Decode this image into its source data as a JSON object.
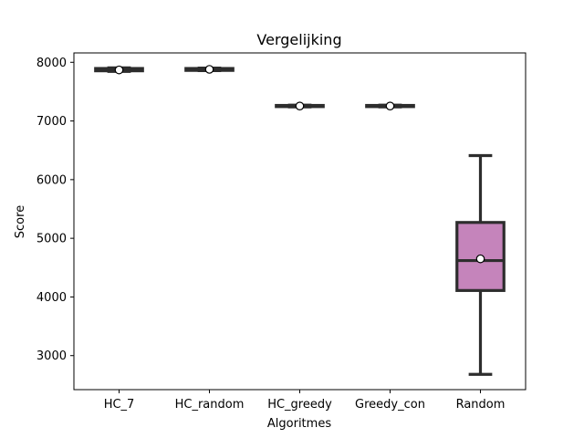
{
  "chart_data": {
    "type": "box",
    "title": "Vergelijking",
    "xlabel": "Algoritmes",
    "ylabel": "Score",
    "ylim": [
      2420,
      8160
    ],
    "yticks": [
      3000,
      4000,
      5000,
      6000,
      7000,
      8000
    ],
    "categories": [
      "HC_7",
      "HC_random",
      "HC_greedy",
      "Greedy_con",
      "Random"
    ],
    "boxes": [
      {
        "category": "HC_7",
        "whisker_low": 7845,
        "q1": 7855,
        "median": 7875,
        "q3": 7895,
        "whisker_high": 7905,
        "mean": 7870,
        "fill": "#2f2f2f"
      },
      {
        "category": "HC_random",
        "whisker_low": 7858,
        "q1": 7862,
        "median": 7878,
        "q3": 7895,
        "whisker_high": 7902,
        "mean": 7880,
        "fill": "#2f2f2f"
      },
      {
        "category": "HC_greedy",
        "whisker_low": 7240,
        "q1": 7245,
        "median": 7255,
        "q3": 7265,
        "whisker_high": 7270,
        "mean": 7255,
        "fill": "#2f2f2f"
      },
      {
        "category": "Greedy_con",
        "whisker_low": 7240,
        "q1": 7245,
        "median": 7255,
        "q3": 7265,
        "whisker_high": 7270,
        "mean": 7255,
        "fill": "#2f2f2f"
      },
      {
        "category": "Random",
        "whisker_low": 2680,
        "q1": 4110,
        "median": 4620,
        "q3": 5270,
        "whisker_high": 6410,
        "mean": 4650,
        "fill": "#c584bb"
      }
    ],
    "legend": "none",
    "grid": false
  }
}
